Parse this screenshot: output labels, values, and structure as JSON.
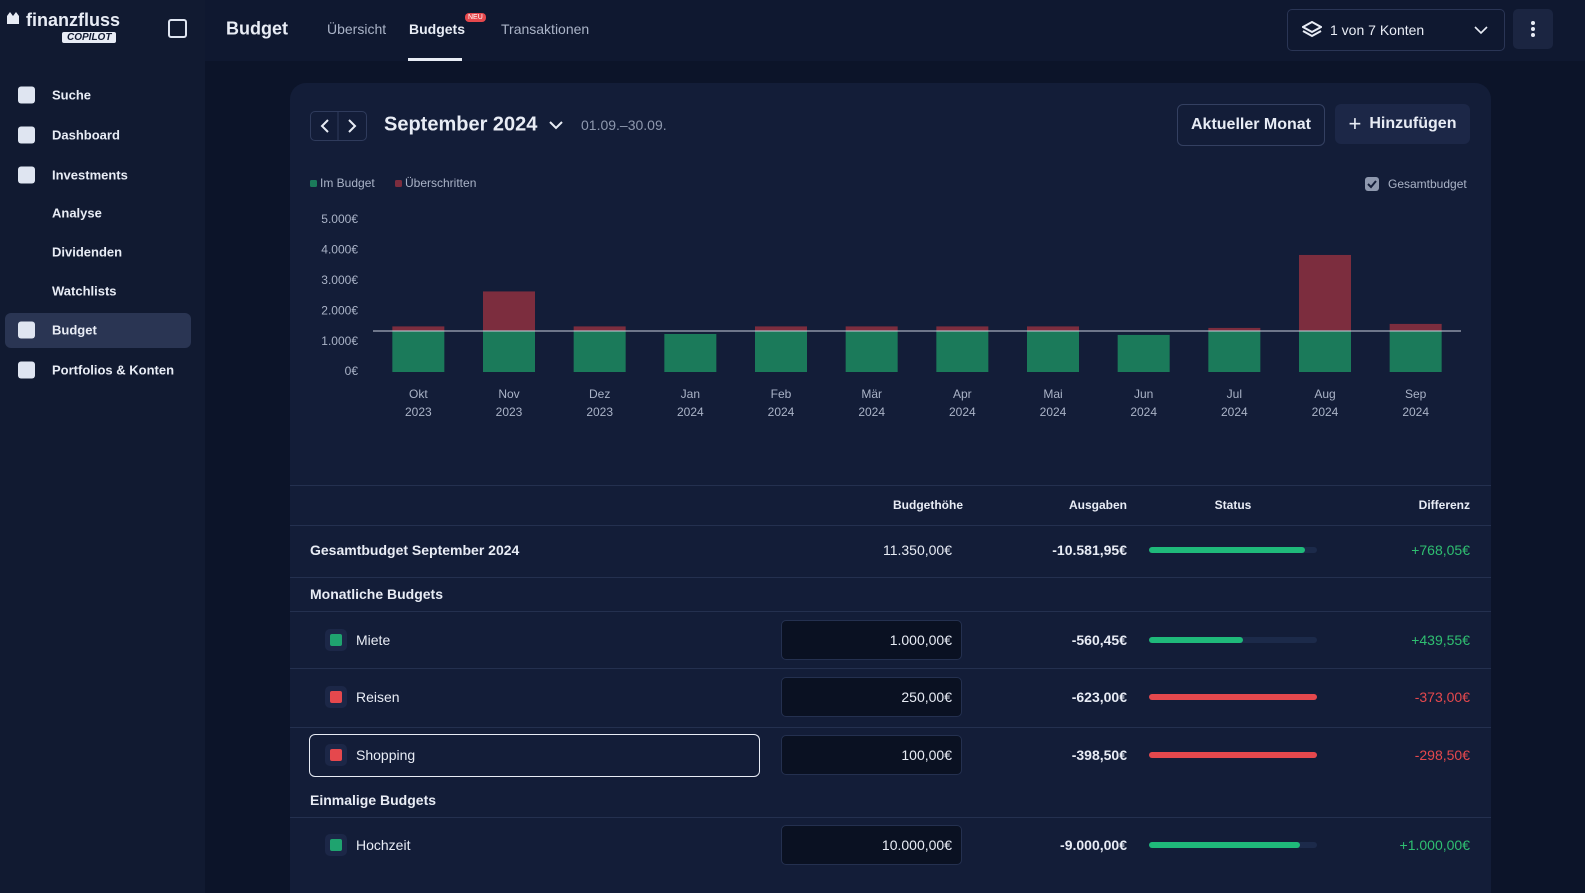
{
  "sidebar": {
    "brand": "finanzfluss",
    "brand_badge": "COPILOT",
    "items": [
      "Suche",
      "Dashboard",
      "Investments",
      "Analyse",
      "Dividenden",
      "Watchlists",
      "Budget",
      "Portfolios & Konten"
    ]
  },
  "topbar": {
    "title": "Budget",
    "tabs": [
      "Übersicht",
      "Budgets",
      "Transaktionen"
    ],
    "new_badge": "NEU",
    "accounts": "1 von 7 Konten"
  },
  "period": {
    "month": "September 2024",
    "range": "01.09.–30.09.",
    "current_button": "Aktueller Monat",
    "add_button": "Hinzufügen"
  },
  "total_budget_toggle": "Gesamtbudget",
  "chart_data": {
    "type": "stacked_bar",
    "categories": [
      [
        "Okt",
        "2023"
      ],
      [
        "Nov",
        "2023"
      ],
      [
        "Dez",
        "2023"
      ],
      [
        "Jan",
        "2024"
      ],
      [
        "Feb",
        "2024"
      ],
      [
        "Mär",
        "2024"
      ],
      [
        "Apr",
        "2024"
      ],
      [
        "Mai",
        "2024"
      ],
      [
        "Jun",
        "2024"
      ],
      [
        "Jul",
        "2024"
      ],
      [
        "Aug",
        "2024"
      ],
      [
        "Sep",
        "2024"
      ]
    ],
    "series": [
      {
        "name": "Im Budget",
        "color": "#1b7a5a",
        "values": [
          1350,
          1350,
          1350,
          1250,
          1350,
          1350,
          1350,
          1350,
          1220,
          1350,
          1350,
          1350
        ]
      },
      {
        "name": "Überschritten",
        "color": "#7c2d3e",
        "values": [
          150,
          1300,
          150,
          0,
          150,
          150,
          150,
          150,
          0,
          100,
          2500,
          231.95
        ]
      }
    ],
    "budget_line": 1350,
    "ylim": [
      0,
      5000
    ],
    "yticks": [
      {
        "value": 0,
        "label": "0€"
      },
      {
        "value": 1000,
        "label": "1.000€"
      },
      {
        "value": 2000,
        "label": "2.000€"
      },
      {
        "value": 3000,
        "label": "3.000€"
      },
      {
        "value": 4000,
        "label": "4.000€"
      },
      {
        "value": 5000,
        "label": "5.000€"
      }
    ],
    "grid": false
  },
  "table": {
    "headers": [
      "Budgethöhe",
      "Ausgaben",
      "Status",
      "Differenz"
    ],
    "total": {
      "name": "Gesamtbudget September 2024",
      "budget": "11.350,00€",
      "spent": "-10.581,95€",
      "status": 93,
      "difference": "+768,05€",
      "over": false
    },
    "sections": [
      {
        "title": "Monatliche Budgets",
        "rows": [
          {
            "name": "Miete",
            "budget": "1.000,00€",
            "spent": "-560,45€",
            "status": 56,
            "difference": "+439,55€",
            "over": false
          },
          {
            "name": "Reisen",
            "budget": "250,00€",
            "spent": "-623,00€",
            "status": 100,
            "difference": "-373,00€",
            "over": true
          },
          {
            "name": "Shopping",
            "budget": "100,00€",
            "spent": "-398,50€",
            "status": 100,
            "difference": "-298,50€",
            "over": true,
            "focused": true
          }
        ]
      },
      {
        "title": "Einmalige Budgets",
        "rows": [
          {
            "name": "Hochzeit",
            "budget": "10.000,00€",
            "spent": "-9.000,00€",
            "status": 90,
            "difference": "+1.000,00€",
            "over": false
          }
        ]
      }
    ]
  }
}
